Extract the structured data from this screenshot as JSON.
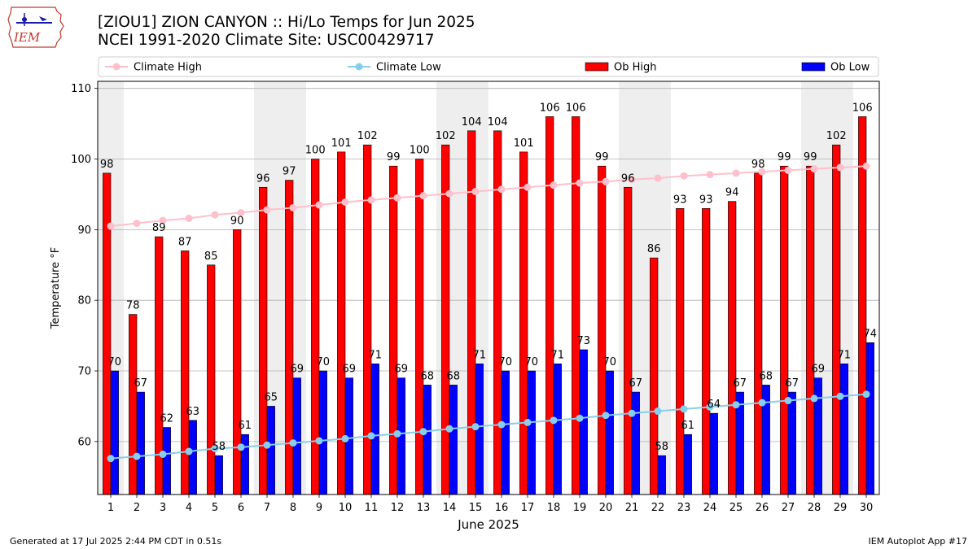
{
  "logo": {
    "text": "IEM"
  },
  "header": {
    "title": "[ZIOU1] ZION CANYON :: Hi/Lo Temps for Jun 2025",
    "subtitle": "NCEI 1991-2020 Climate Site: USC00429717"
  },
  "footer": {
    "generated": "Generated at 17 Jul 2025 2:44 PM CDT in 0.51s",
    "app": "IEM Autoplot App #17"
  },
  "colors": {
    "ob_high": "#ff0000",
    "ob_low": "#0000ff",
    "climate_high": "#ffc0cb",
    "climate_low": "#87ceeb",
    "weekend_band": "#eeeeee"
  },
  "chart_data": {
    "type": "bar",
    "xlabel": "June 2025",
    "ylabel": "Temperature °F",
    "ylim": [
      52.5,
      111
    ],
    "yticks": [
      60,
      70,
      80,
      90,
      100,
      110
    ],
    "grid": true,
    "legend_position": "top",
    "categories": [
      "1",
      "2",
      "3",
      "4",
      "5",
      "6",
      "7",
      "8",
      "9",
      "10",
      "11",
      "12",
      "13",
      "14",
      "15",
      "16",
      "17",
      "18",
      "19",
      "20",
      "21",
      "22",
      "23",
      "24",
      "25",
      "26",
      "27",
      "28",
      "29",
      "30"
    ],
    "weekend_bands": [
      [
        1,
        1
      ],
      [
        7,
        8
      ],
      [
        14,
        15
      ],
      [
        21,
        22
      ],
      [
        28,
        29
      ]
    ],
    "series": [
      {
        "name": "Ob High",
        "kind": "bar",
        "values": [
          98,
          78,
          89,
          87,
          85,
          90,
          96,
          97,
          100,
          101,
          102,
          99,
          100,
          102,
          104,
          104,
          101,
          106,
          106,
          99,
          96,
          86,
          93,
          93,
          94,
          98,
          99,
          99,
          102,
          106
        ]
      },
      {
        "name": "Ob Low",
        "kind": "bar",
        "values": [
          70,
          67,
          62,
          63,
          58,
          61,
          65,
          69,
          70,
          69,
          71,
          69,
          68,
          68,
          71,
          70,
          70,
          71,
          73,
          70,
          67,
          58,
          61,
          64,
          67,
          68,
          67,
          69,
          71,
          74
        ]
      },
      {
        "name": "Climate High",
        "kind": "line",
        "values": [
          90.5,
          90.9,
          91.3,
          91.6,
          92.1,
          92.4,
          92.8,
          93.1,
          93.5,
          93.9,
          94.2,
          94.5,
          94.8,
          95.1,
          95.4,
          95.7,
          96.0,
          96.3,
          96.6,
          96.8,
          97.1,
          97.3,
          97.6,
          97.8,
          98.0,
          98.2,
          98.4,
          98.6,
          98.8,
          99.0
        ]
      },
      {
        "name": "Climate Low",
        "kind": "line",
        "values": [
          57.6,
          57.9,
          58.2,
          58.6,
          59.0,
          59.2,
          59.5,
          59.8,
          60.1,
          60.4,
          60.8,
          61.1,
          61.4,
          61.8,
          62.1,
          62.4,
          62.7,
          63.0,
          63.3,
          63.7,
          64.0,
          64.3,
          64.6,
          64.9,
          65.2,
          65.5,
          65.8,
          66.1,
          66.4,
          66.7
        ]
      }
    ]
  }
}
